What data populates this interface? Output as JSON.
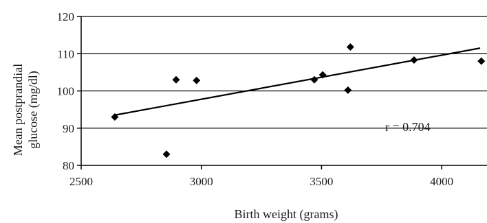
{
  "chart_data": {
    "type": "scatter",
    "xlabel": "Birth weight (grams)",
    "ylabel_lines": [
      "Mean postprandial",
      "glucose (mg/dl)"
    ],
    "xlim": [
      2500,
      4200
    ],
    "ylim": [
      80,
      120
    ],
    "xticks": [
      2500,
      3000,
      3500,
      4000
    ],
    "yticks": [
      80,
      90,
      100,
      110,
      120
    ],
    "grid": "horizontal",
    "points": [
      {
        "x": 2640,
        "y": 93
      },
      {
        "x": 2855,
        "y": 83
      },
      {
        "x": 2895,
        "y": 103
      },
      {
        "x": 2980,
        "y": 102.8
      },
      {
        "x": 3470,
        "y": 103
      },
      {
        "x": 3505,
        "y": 104.3
      },
      {
        "x": 3610,
        "y": 100.2
      },
      {
        "x": 3620,
        "y": 111.8
      },
      {
        "x": 3885,
        "y": 108.3
      },
      {
        "x": 4165,
        "y": 108
      }
    ],
    "trendline": {
      "x": [
        2640,
        4160
      ],
      "y": [
        93.5,
        111.5
      ]
    },
    "annotation": "r = 0.704"
  }
}
